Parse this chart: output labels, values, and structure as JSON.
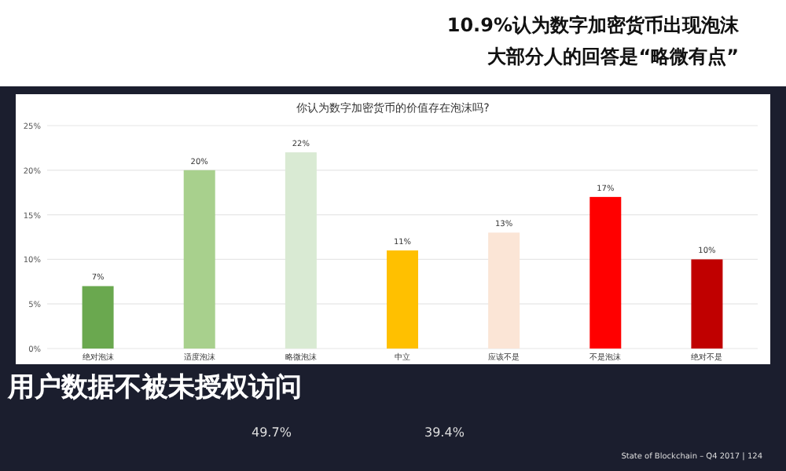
{
  "chart_data": {
    "type": "bar",
    "title": "你认为数字加密货币的价值存在泡沫吗?",
    "categories": [
      "绝对泡沫",
      "适度泡沫",
      "略微泡沫",
      "中立",
      "应该不是",
      "不是泡沫",
      "绝对不是"
    ],
    "values": [
      7,
      20,
      22,
      11,
      13,
      17,
      10
    ],
    "colors": [
      "#6aa84f",
      "#a8d08d",
      "#d9ead3",
      "#ffc000",
      "#fbe5d6",
      "#ff0000",
      "#c00000"
    ],
    "value_labels": [
      "7%",
      "20%",
      "22%",
      "11%",
      "13%",
      "17%",
      "10%"
    ],
    "ylim": [
      0,
      25
    ],
    "yticks": [
      {
        "value": 0,
        "label": "0%"
      },
      {
        "value": 5,
        "label": "5%"
      },
      {
        "value": 10,
        "label": "10%"
      },
      {
        "value": 15,
        "label": "15%"
      },
      {
        "value": 20,
        "label": "20%"
      },
      {
        "value": 25,
        "label": "25%"
      }
    ],
    "grid": "y",
    "annotations": [
      "10.9%认为数字加密货币出现泡沫",
      "大部分人的回答是“略微有点”",
      "用户数据不被未授权访问",
      "49.7%",
      "39.4%",
      "State of Blockchain – Q4 2017 | 124"
    ]
  }
}
